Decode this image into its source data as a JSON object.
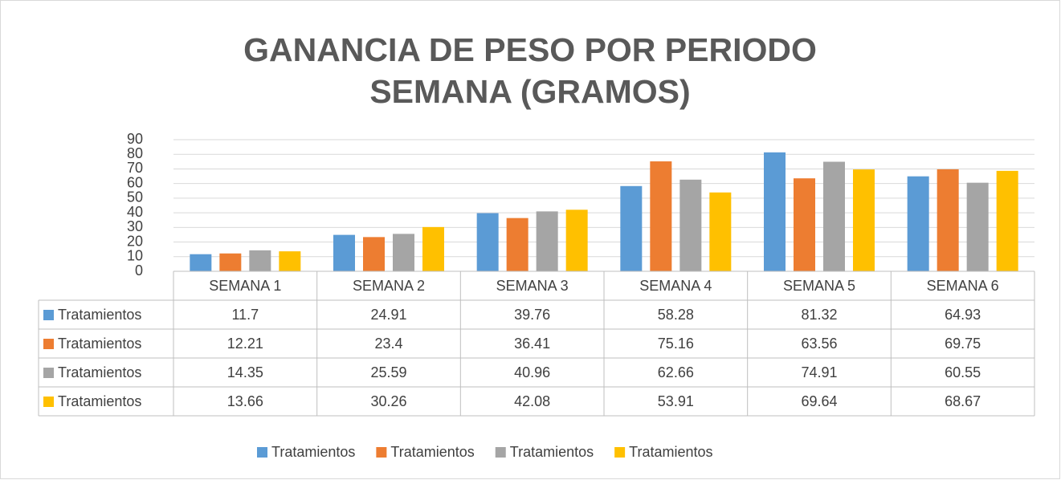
{
  "chart_data": {
    "type": "bar",
    "title": "GANANCIA DE PESO POR PERIODO SEMANA (GRAMOS)",
    "categories": [
      "SEMANA 1",
      "SEMANA 2",
      "SEMANA 3",
      "SEMANA 4",
      "SEMANA 5",
      "SEMANA 6"
    ],
    "series": [
      {
        "name": "Tratamientos",
        "color": "#5b9bd5",
        "values": [
          11.7,
          24.91,
          39.76,
          58.28,
          81.32,
          64.93
        ]
      },
      {
        "name": "Tratamientos",
        "color": "#ed7d31",
        "values": [
          12.21,
          23.4,
          36.41,
          75.16,
          63.56,
          69.75
        ]
      },
      {
        "name": "Tratamientos",
        "color": "#a5a5a5",
        "values": [
          14.35,
          25.59,
          40.96,
          62.66,
          74.91,
          60.55
        ]
      },
      {
        "name": "Tratamientos",
        "color": "#ffc000",
        "values": [
          13.66,
          30.26,
          42.08,
          53.91,
          69.64,
          68.67
        ]
      }
    ],
    "ylim": [
      0,
      90
    ],
    "yticks": [
      0,
      10,
      20,
      30,
      40,
      50,
      60,
      70,
      80,
      90
    ],
    "grid": true,
    "legend": "bottom",
    "data_table": true
  }
}
